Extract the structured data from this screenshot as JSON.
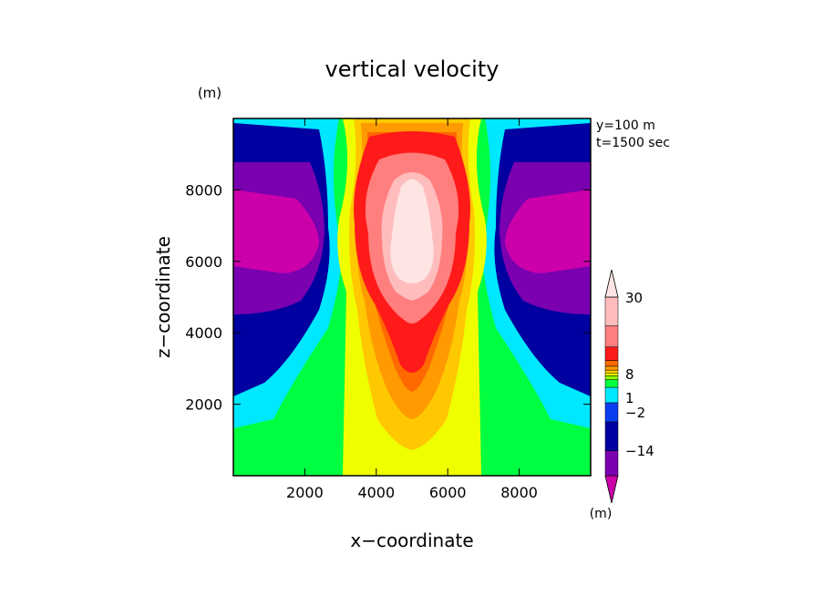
{
  "chart_data": {
    "type": "heatmap",
    "title": "vertical velocity",
    "xlabel": "x−coordinate",
    "ylabel": "z−coordinate",
    "y_unit": "(m)",
    "annotations": [
      "y=100 m",
      "t=1500 sec"
    ],
    "xlim": [
      0,
      10000
    ],
    "ylim": [
      0,
      10000
    ],
    "xticks": [
      2000,
      4000,
      6000,
      8000
    ],
    "yticks": [
      2000,
      4000,
      6000,
      8000
    ],
    "xtick_labels": [
      "2000",
      "4000",
      "6000",
      "8000"
    ],
    "ytick_labels": [
      "2000",
      "4000",
      "6000",
      "8000"
    ],
    "colorbar": {
      "unit": "(m)",
      "labels": [
        {
          "text": "30",
          "value": 30
        },
        {
          "text": "8",
          "value": 8
        },
        {
          "text": "1",
          "value": 1
        },
        {
          "text": "−2",
          "value": -2
        },
        {
          "text": "−14",
          "value": -14
        }
      ],
      "levels": [
        {
          "value": -20,
          "color": "#cc00aa"
        },
        {
          "value": -14,
          "color": "#7a00b0"
        },
        {
          "value": -8,
          "color": "#0000a0"
        },
        {
          "value": -4,
          "color": "#0a3cf0"
        },
        {
          "value": -2,
          "color": "#00e8ff"
        },
        {
          "value": -1,
          "color": "#00ff40"
        },
        {
          "value": 0,
          "color": "#8cff00"
        },
        {
          "value": 0.5,
          "color": "#f0ff00"
        },
        {
          "value": 1,
          "color": "#ffc800"
        },
        {
          "value": 2,
          "color": "#ff9a00"
        },
        {
          "value": 4,
          "color": "#ff6a00"
        },
        {
          "value": 8,
          "color": "#ff1a1a"
        },
        {
          "value": 16,
          "color": "#ff7e7e"
        },
        {
          "value": 24,
          "color": "#ffbcbc"
        },
        {
          "value": 30,
          "color": "#ffe4e4"
        }
      ]
    },
    "regions": [
      {
        "name": "green",
        "color": "#00ff40"
      },
      {
        "name": "cyan",
        "color": "#00e8ff"
      },
      {
        "name": "navy",
        "color": "#0000a0"
      },
      {
        "name": "purple",
        "color": "#7a00b0"
      },
      {
        "name": "magenta",
        "color": "#cc00aa"
      },
      {
        "name": "yellow",
        "color": "#f0ff00"
      },
      {
        "name": "light-orange",
        "color": "#ffc800"
      },
      {
        "name": "orange",
        "color": "#ff9a00"
      },
      {
        "name": "dark-orange",
        "color": "#ff6a00"
      },
      {
        "name": "red",
        "color": "#ff1a1a"
      },
      {
        "name": "salmon",
        "color": "#ff7e7e"
      },
      {
        "name": "pink",
        "color": "#ffbcbc"
      },
      {
        "name": "very-light-pink",
        "color": "#ffe4e4"
      }
    ]
  }
}
